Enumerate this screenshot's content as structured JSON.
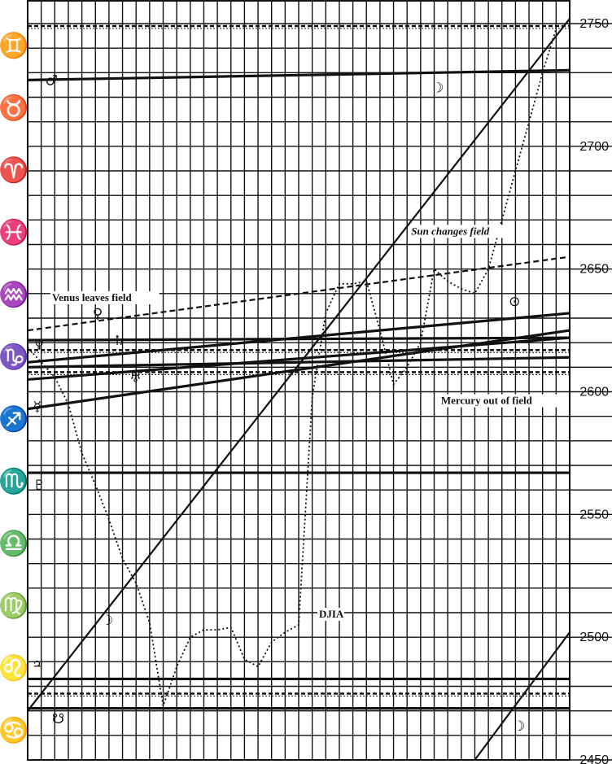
{
  "chart_data": {
    "type": "line",
    "title": "",
    "xlabel": "",
    "ylabel": "",
    "ylim": [
      2450,
      2760
    ],
    "y_ticks": [
      2450,
      2500,
      2550,
      2600,
      2650,
      2700,
      2750
    ],
    "zodiac_signs": [
      "♊",
      "♉",
      "♈",
      "♓",
      "♒",
      "♑",
      "♐",
      "♏",
      "♎",
      "♍",
      "♌",
      "♋"
    ],
    "grid": true,
    "series": [
      {
        "name": "DJIA",
        "style": "dotted",
        "x": [
          0,
          1,
          2,
          3,
          4,
          5,
          6,
          7,
          8,
          9,
          10,
          11,
          12,
          13,
          14,
          15,
          16,
          17,
          18,
          19,
          20,
          21,
          22,
          23,
          24,
          25,
          26,
          27,
          28,
          29,
          30,
          31,
          32,
          33,
          34,
          35,
          36,
          37,
          38,
          39
        ],
        "values": [
          2618,
          2612,
          2606,
          2595,
          2575,
          2562,
          2548,
          2532,
          2522,
          2506,
          2472,
          2488,
          2500,
          2503,
          2503,
          2504,
          2491,
          2488,
          2498,
          2502,
          2505,
          2598,
          2632,
          2644,
          2644,
          2645,
          2625,
          2603,
          2610,
          2620,
          2650,
          2645,
          2642,
          2640,
          2650,
          2670,
          2690,
          2710,
          2730,
          2748
        ]
      },
      {
        "name": "",
        "style": "solid",
        "x": [
          0,
          40
        ],
        "values": [
          2470,
          2752
        ]
      },
      {
        "name": "",
        "style": "solid",
        "x": [
          33,
          40
        ],
        "values": [
          2450,
          2502
        ]
      },
      {
        "name": "Sun",
        "style": "dashed",
        "x": [
          0,
          40
        ],
        "values": [
          2625,
          2655
        ]
      }
    ],
    "planet_lines": [
      {
        "symbol": "♂",
        "x": [
          0,
          40
        ],
        "values": [
          2727,
          2731
        ]
      },
      {
        "symbol": "♀",
        "x": [
          0,
          40
        ],
        "values": [
          2621,
          2622
        ]
      },
      {
        "symbol": "♄",
        "x": [
          0,
          40
        ],
        "values": [
          2612,
          2632
        ]
      },
      {
        "symbol": "♅",
        "x": [
          0,
          40
        ],
        "values": [
          2605,
          2622
        ]
      },
      {
        "symbol": "♆",
        "x": [
          0,
          40
        ],
        "values": [
          2610,
          2614
        ]
      },
      {
        "symbol": "☿",
        "x": [
          0,
          40
        ],
        "values": [
          2593,
          2625
        ]
      },
      {
        "symbol": "♇",
        "x": [
          0,
          40
        ],
        "values": [
          2567,
          2567
        ]
      },
      {
        "symbol": "♃",
        "x": [
          0,
          40
        ],
        "values": [
          2483,
          2483
        ]
      },
      {
        "symbol": "☋",
        "x": [
          0,
          40
        ],
        "values": [
          2471,
          2471
        ]
      }
    ],
    "reference_lines": [
      2749,
      2617,
      2608,
      2477
    ],
    "annotations": [
      {
        "text": "Venus leaves field",
        "x": 1.8,
        "y": 2637
      },
      {
        "text": "Sun changes field",
        "x": 28.3,
        "y": 2664
      },
      {
        "text": "Mercury out of field",
        "x": 30.5,
        "y": 2595
      },
      {
        "text": "DJIA",
        "x": 21.5,
        "y": 2508
      }
    ],
    "moon_markers": [
      {
        "symbol": "☽",
        "x": 29.8,
        "y": 2722
      },
      {
        "symbol": "☽",
        "x": 5.4,
        "y": 2505
      },
      {
        "symbol": "☽",
        "x": 35.8,
        "y": 2462
      }
    ],
    "sun_marker": {
      "symbol": "⊙",
      "x": 35.5,
      "y": 2635
    },
    "planet_labels": [
      {
        "symbol": "♂",
        "x": 1.3,
        "y": 2725
      },
      {
        "symbol": "♀",
        "x": 4.8,
        "y": 2630
      },
      {
        "symbol": "♄",
        "x": 6.3,
        "y": 2619
      },
      {
        "symbol": "♆",
        "x": 0.4,
        "y": 2617
      },
      {
        "symbol": "♅",
        "x": 7.5,
        "y": 2604
      },
      {
        "symbol": "☿",
        "x": 0.4,
        "y": 2592
      },
      {
        "symbol": "♇",
        "x": 0.4,
        "y": 2560
      },
      {
        "symbol": "♃",
        "x": 0.3,
        "y": 2487
      },
      {
        "symbol": "☋",
        "x": 1.8,
        "y": 2465
      }
    ]
  }
}
